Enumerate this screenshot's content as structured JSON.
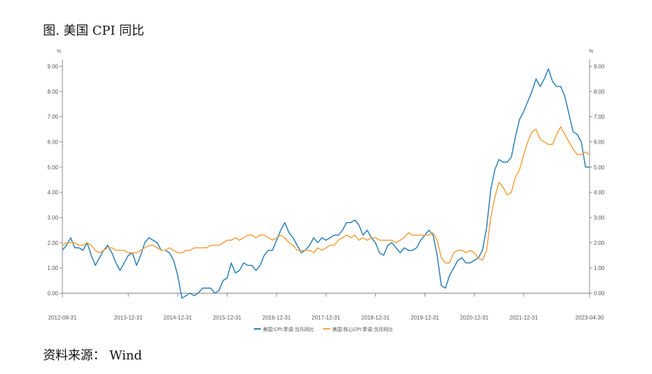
{
  "title": "图. 美国 CPI 同比",
  "source": "资料来源： Wind",
  "colors": {
    "headline": "#2c7fb8",
    "core": "#f5a040",
    "axis": "#8a8a8a",
    "text": "#555555"
  },
  "chart_data": {
    "type": "line",
    "y_unit_left": "%",
    "y_unit_right": "%",
    "ylim": [
      0,
      9
    ],
    "yticks": [
      "0.00",
      "1.00",
      "2.00",
      "3.00",
      "4.00",
      "5.00",
      "6.00",
      "7.00",
      "8.00",
      "9.00"
    ],
    "xticks": [
      "2012-08-31",
      "2013-12-31",
      "2014-12-31",
      "2015-12-31",
      "2016-12-31",
      "2017-12-31",
      "2018-12-31",
      "2019-12-31",
      "2020-12-31",
      "2021-12-31",
      "2023-04-30"
    ],
    "x_start": "2012-08",
    "x_end": "2023-04",
    "legend_position": "bottom",
    "series": [
      {
        "name": "美国:CPI:季调:当月同比",
        "color": "#2c7fb8",
        "values": [
          1.7,
          1.9,
          2.2,
          1.8,
          1.8,
          1.7,
          2.0,
          1.5,
          1.1,
          1.4,
          1.7,
          1.9,
          1.6,
          1.2,
          0.9,
          1.2,
          1.5,
          1.6,
          1.1,
          1.5,
          2.0,
          2.2,
          2.1,
          2.0,
          1.7,
          1.7,
          1.6,
          1.3,
          0.7,
          -0.2,
          -0.1,
          0.0,
          -0.1,
          0.0,
          0.2,
          0.2,
          0.2,
          0.0,
          0.1,
          0.5,
          0.6,
          1.2,
          0.8,
          0.9,
          1.2,
          1.1,
          1.1,
          0.9,
          1.1,
          1.5,
          1.7,
          1.7,
          2.1,
          2.5,
          2.8,
          2.4,
          2.2,
          1.9,
          1.6,
          1.7,
          1.9,
          2.2,
          2.0,
          2.2,
          2.1,
          2.2,
          2.3,
          2.3,
          2.5,
          2.8,
          2.8,
          2.9,
          2.7,
          2.3,
          2.5,
          2.2,
          2.0,
          1.6,
          1.5,
          1.9,
          2.0,
          1.8,
          1.6,
          1.8,
          1.7,
          1.7,
          1.8,
          2.1,
          2.3,
          2.5,
          2.3,
          1.5,
          0.3,
          0.2,
          0.7,
          1.0,
          1.3,
          1.4,
          1.2,
          1.2,
          1.3,
          1.4,
          1.7,
          2.6,
          4.1,
          4.9,
          5.3,
          5.2,
          5.2,
          5.4,
          6.2,
          6.9,
          7.2,
          7.6,
          8.0,
          8.5,
          8.2,
          8.5,
          8.9,
          8.4,
          8.2,
          8.2,
          7.8,
          7.1,
          6.4,
          6.3,
          6.0,
          5.0,
          5.0
        ]
      },
      {
        "name": "美国:核心CPI:季调:当月同比",
        "color": "#f5a040",
        "values": [
          1.9,
          2.0,
          2.0,
          2.0,
          1.9,
          1.9,
          2.0,
          1.9,
          1.7,
          1.6,
          1.7,
          1.8,
          1.8,
          1.7,
          1.7,
          1.7,
          1.6,
          1.6,
          1.6,
          1.7,
          1.8,
          1.9,
          1.9,
          1.8,
          1.7,
          1.7,
          1.8,
          1.7,
          1.6,
          1.6,
          1.7,
          1.7,
          1.8,
          1.8,
          1.8,
          1.8,
          1.9,
          1.9,
          1.9,
          2.0,
          2.1,
          2.1,
          2.2,
          2.1,
          2.2,
          2.3,
          2.3,
          2.2,
          2.3,
          2.3,
          2.2,
          2.1,
          2.2,
          2.3,
          2.2,
          2.0,
          1.9,
          1.7,
          1.7,
          1.7,
          1.7,
          1.6,
          1.8,
          1.7,
          1.8,
          1.9,
          1.9,
          2.1,
          2.2,
          2.3,
          2.2,
          2.3,
          2.1,
          2.2,
          2.1,
          2.2,
          2.2,
          2.1,
          2.1,
          2.1,
          2.1,
          2.0,
          2.1,
          2.2,
          2.4,
          2.3,
          2.3,
          2.3,
          2.3,
          2.3,
          2.4,
          2.1,
          1.4,
          1.2,
          1.2,
          1.6,
          1.7,
          1.7,
          1.6,
          1.7,
          1.6,
          1.4,
          1.3,
          1.7,
          3.0,
          3.8,
          4.4,
          4.2,
          3.9,
          4.0,
          4.6,
          4.9,
          5.5,
          6.0,
          6.4,
          6.5,
          6.1,
          6.0,
          5.9,
          5.9,
          6.3,
          6.6,
          6.3,
          6.0,
          5.7,
          5.5,
          5.5,
          5.6,
          5.5
        ]
      }
    ]
  }
}
